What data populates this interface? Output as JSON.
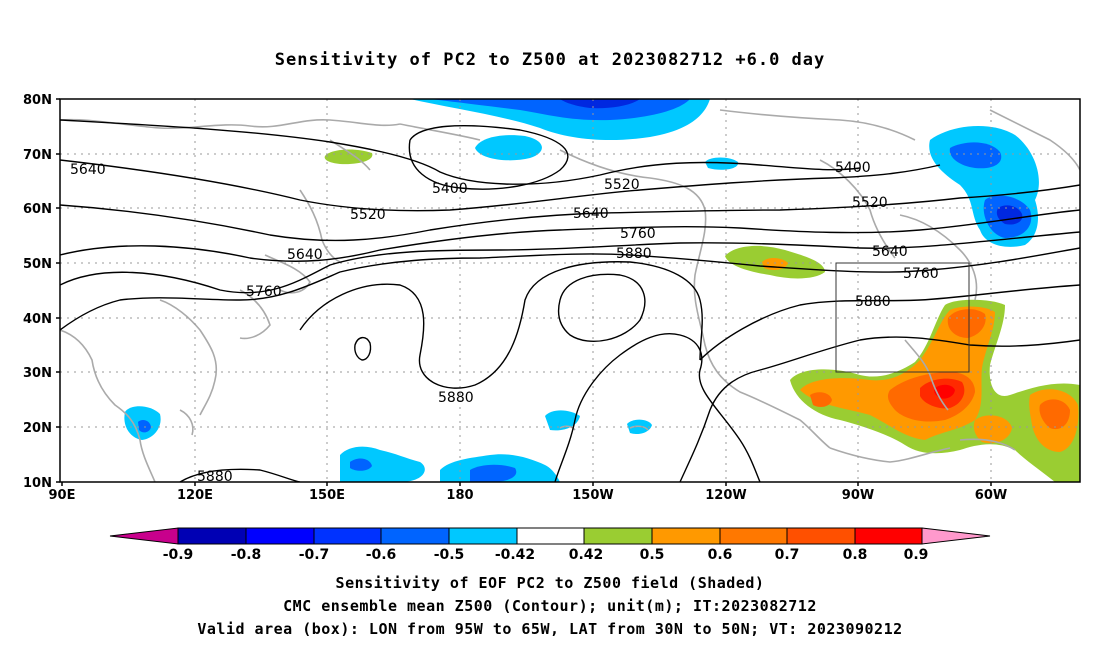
{
  "title": "Sensitivity of PC2 to Z500 at 2023082712 +6.0 day",
  "map": {
    "lat_labels": [
      "80N",
      "70N",
      "60N",
      "50N",
      "40N",
      "30N",
      "20N",
      "10N"
    ],
    "lon_labels": [
      "90E",
      "120E",
      "150E",
      "180",
      "150W",
      "120W",
      "90W",
      "60W"
    ],
    "lon_range": [
      "90E",
      "50W"
    ],
    "lat_range": [
      "10N",
      "80N"
    ],
    "grid": "dotted",
    "contour_labels": [
      "5640",
      "5400",
      "5520",
      "5520",
      "5640",
      "5760",
      "5880",
      "5400",
      "5520",
      "5640",
      "5760",
      "5880",
      "5640",
      "5760",
      "5880",
      "5880"
    ],
    "valid_area_box": {
      "lon": [
        "95W",
        "65W"
      ],
      "lat": [
        "30N",
        "50N"
      ]
    },
    "colors": {
      "neg_light": "#00c8ff",
      "neg_mid": "#0064ff",
      "neg_dark": "#0028e0",
      "pos_green": "#9acd32",
      "pos_orange": "#ff9900",
      "pos_darkorange": "#ff6a00",
      "pos_red": "#ff2a00",
      "coast": "#aaaaaa"
    }
  },
  "colorbar": {
    "labels": [
      "-0.9",
      "-0.8",
      "-0.7",
      "-0.6",
      "-0.5",
      "-0.42",
      "0.42",
      "0.5",
      "0.6",
      "0.7",
      "0.8",
      "0.9"
    ],
    "colors": [
      "#c8008c",
      "#0000b4",
      "#0000ff",
      "#0032ff",
      "#0064ff",
      "#0096ff",
      "#00c8ff",
      "#ffffff",
      "#9acd32",
      "#ff9900",
      "#ff7800",
      "#ff5000",
      "#ff2800",
      "#ff0000",
      "#ff99cc"
    ]
  },
  "captions": {
    "line1": "Sensitivity of EOF PC2 to Z500 field (Shaded)",
    "line2": "CMC ensemble mean Z500 (Contour); unit(m); IT:2023082712",
    "line3": "Valid area (box): LON from 95W to 65W, LAT from 30N to 50N; VT: 2023090212"
  }
}
